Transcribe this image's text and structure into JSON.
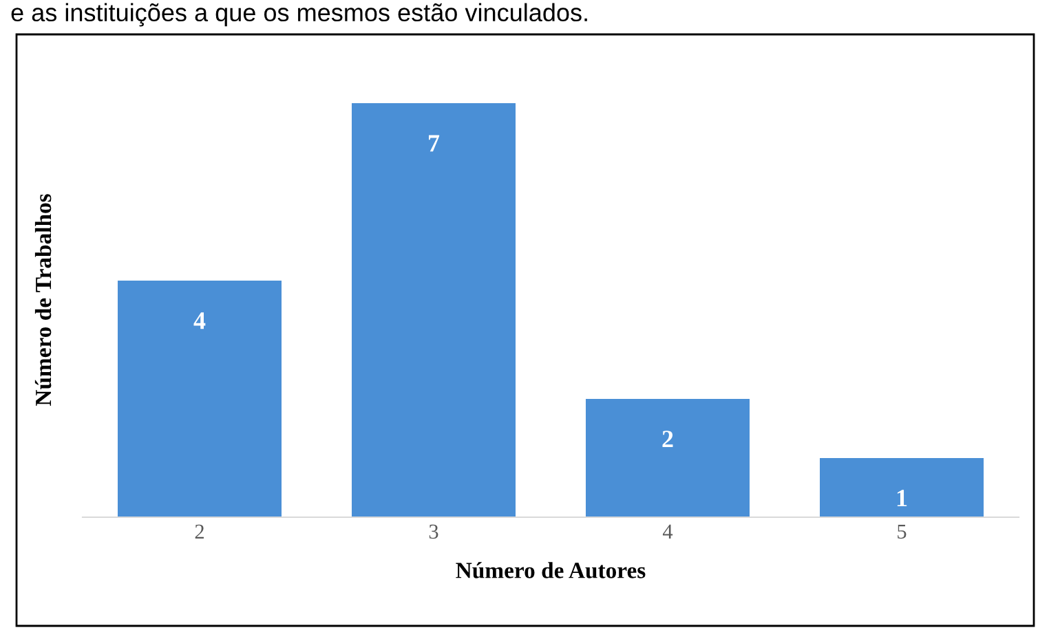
{
  "chart_data": {
    "type": "bar",
    "xlabel": "Número de Autores",
    "ylabel": "Número de Trabalhos",
    "annotations": [
      "e as instituições a que os mesmos estão vinculados."
    ],
    "categories": [
      "2",
      "3",
      "4",
      "5"
    ],
    "values": [
      4,
      7,
      2,
      1
    ],
    "color": "#4a8fd6",
    "data_labels": true,
    "tick_labels": "x",
    "grid": false,
    "legend": false
  }
}
